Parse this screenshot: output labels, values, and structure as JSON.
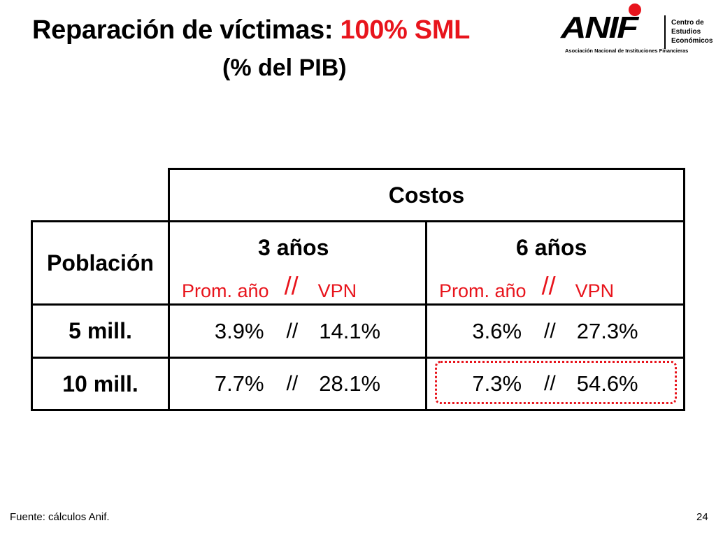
{
  "title": {
    "main": "Reparación de víctimas: ",
    "accent": "100% SML",
    "subtitle": "(% del PIB)"
  },
  "logo": {
    "wordmark": "ANIF",
    "tagline": "Asociación Nacional de Instituciones Financieras",
    "centro": [
      "Centro de",
      "Estudios",
      "Económicos"
    ]
  },
  "table": {
    "header_costos": "Costos",
    "header_poblacion": "Población",
    "col_3": {
      "label": "3 años",
      "sub_left": "Prom. año",
      "sub_sep": "//",
      "sub_right": "VPN"
    },
    "col_6": {
      "label": "6 años",
      "sub_left": "Prom. año",
      "sub_sep": "//",
      "sub_right": "VPN"
    },
    "rows": [
      {
        "poblacion": "5 mill.",
        "c3_prom": "3.9%",
        "c3_vpn": "14.1%",
        "c6_prom": "3.6%",
        "c6_vpn": "27.3%"
      },
      {
        "poblacion": "10 mill.",
        "c3_prom": "7.7%",
        "c3_vpn": "28.1%",
        "c6_prom": "7.3%",
        "c6_vpn": "54.6%"
      }
    ],
    "sep": "//",
    "highlight_color": "#e8141c"
  },
  "footer": {
    "source": "Fuente: cálculos Anif.",
    "page": "24"
  }
}
